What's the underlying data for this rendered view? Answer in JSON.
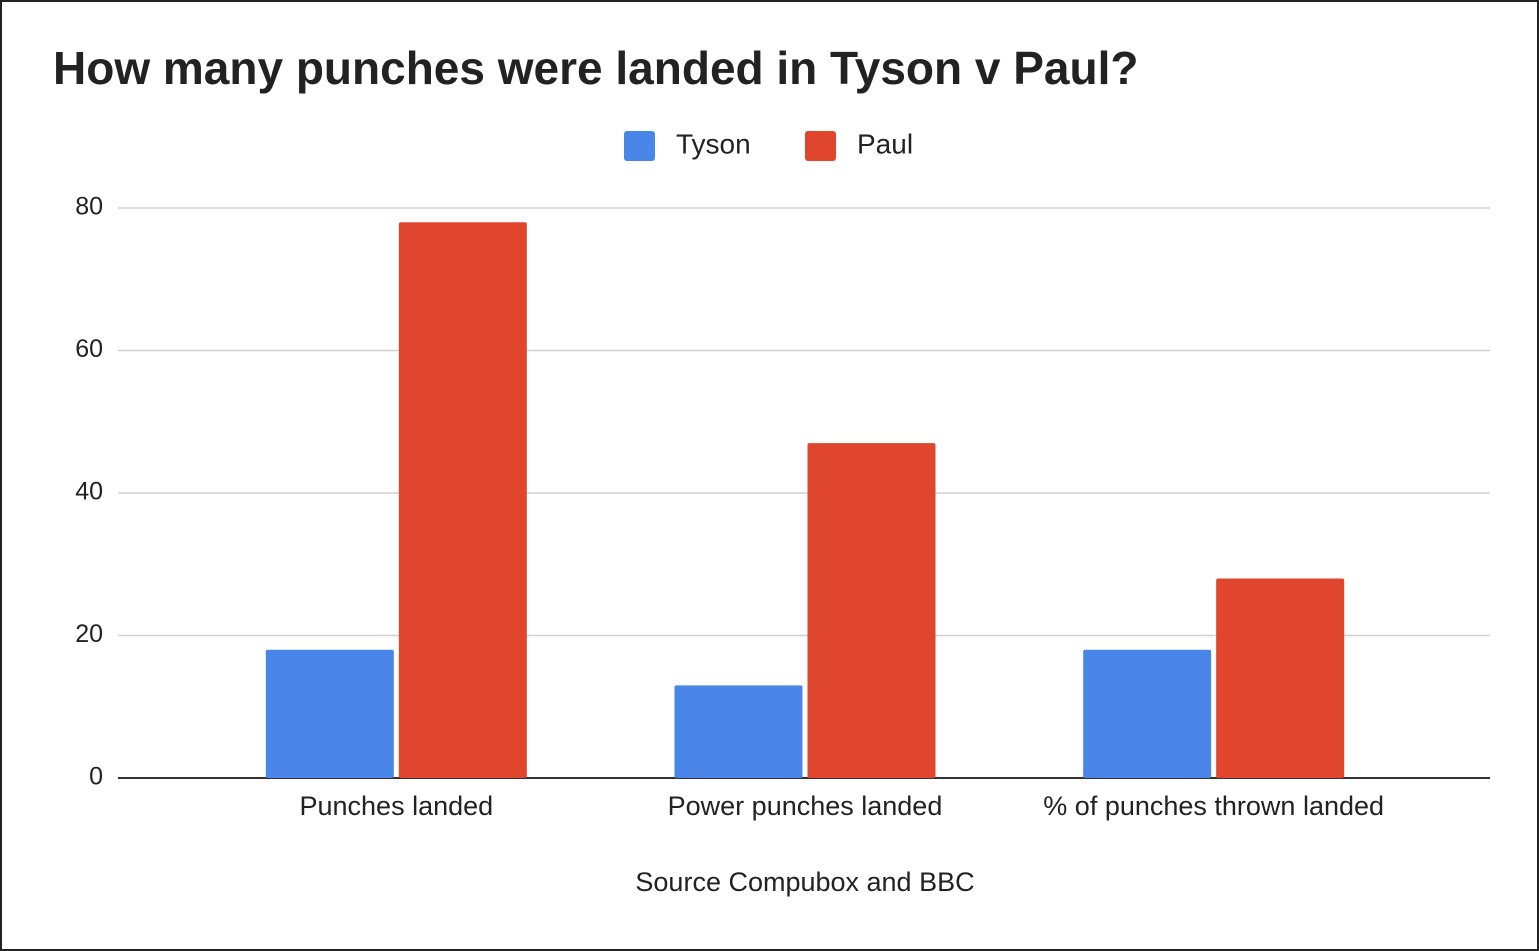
{
  "chart_data": {
    "type": "bar",
    "title": "How many punches were landed in Tyson v Paul?",
    "x_label": "Source Compubox and BBC",
    "categories": [
      "Punches landed",
      "Power punches landed",
      "% of punches thrown landed"
    ],
    "series": [
      {
        "name": "Tyson",
        "color": "#4a86e8",
        "values": [
          18,
          13,
          18
        ]
      },
      {
        "name": "Paul",
        "color": "#e0452d",
        "values": [
          78,
          47,
          28
        ]
      }
    ],
    "ylim": [
      0,
      80
    ],
    "yticks": [
      0,
      20,
      40,
      60,
      80
    ],
    "grid": true,
    "legend": "top"
  }
}
